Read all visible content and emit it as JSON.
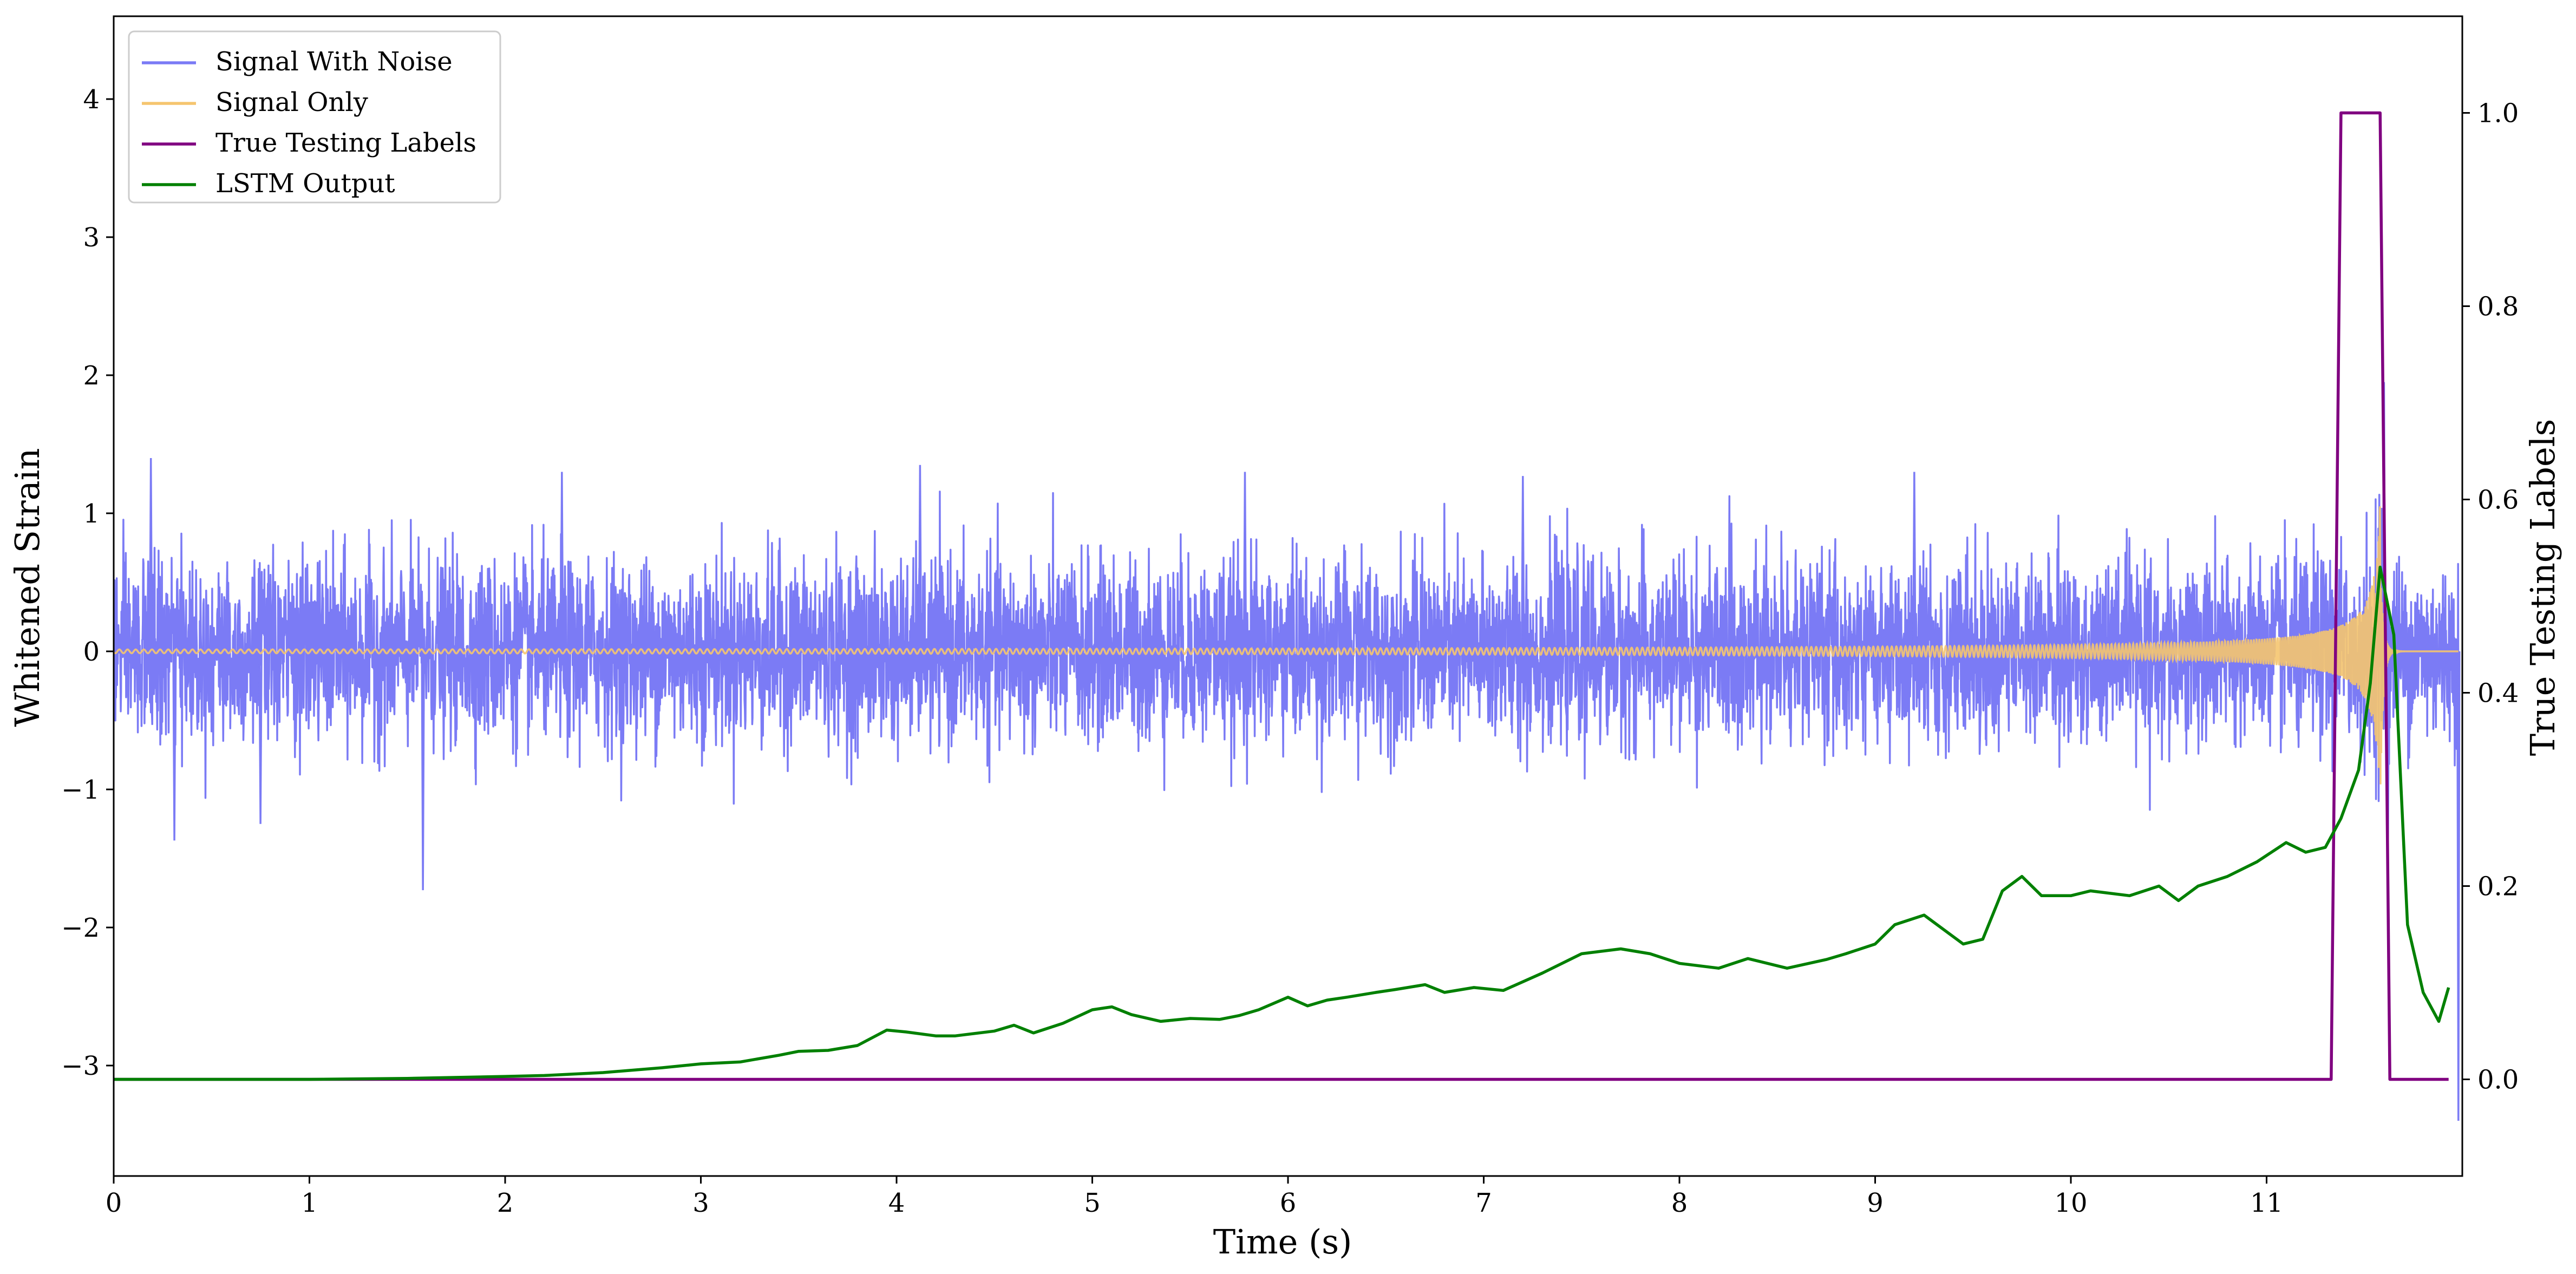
{
  "chart_data": {
    "type": "line",
    "xlabel": "Time (s)",
    "ylabel": "Whitened Strain",
    "y2label": "True Testing Labels",
    "xlim": [
      0,
      12
    ],
    "ylim": [
      -3.8,
      4.6
    ],
    "y2lim": [
      -0.1,
      1.1
    ],
    "x_ticks": [
      "0",
      "1",
      "2",
      "3",
      "4",
      "5",
      "6",
      "7",
      "8",
      "9",
      "10",
      "11"
    ],
    "x_tick_values": [
      0,
      1,
      2,
      3,
      4,
      5,
      6,
      7,
      8,
      9,
      10,
      11
    ],
    "y_ticks": [
      "−3",
      "−2",
      "−1",
      "0",
      "1",
      "2",
      "3",
      "4"
    ],
    "y_tick_values": [
      -3,
      -2,
      -1,
      0,
      1,
      2,
      3,
      4
    ],
    "y2_ticks": [
      "0.0",
      "0.2",
      "0.4",
      "0.6",
      "0.8",
      "1.0"
    ],
    "y2_tick_values": [
      0.0,
      0.2,
      0.4,
      0.6,
      0.8,
      1.0
    ],
    "grid": false,
    "legend_position": "top-left",
    "series": [
      {
        "name": "Signal With Noise",
        "axis": "left",
        "color": "#7b7bf5",
        "kind": "noise",
        "typical_amplitude": 0.45,
        "spikes": [
          {
            "x": 0.19,
            "y": 1.4
          },
          {
            "x": 0.31,
            "y": -1.37
          },
          {
            "x": 0.75,
            "y": -1.25
          },
          {
            "x": 1.58,
            "y": -1.73
          },
          {
            "x": 2.29,
            "y": 1.3
          },
          {
            "x": 4.12,
            "y": 1.35
          },
          {
            "x": 5.78,
            "y": 1.3
          },
          {
            "x": 7.2,
            "y": 1.27
          },
          {
            "x": 9.2,
            "y": 1.3
          },
          {
            "x": 11.6,
            "y": 1.95
          },
          {
            "x": 11.62,
            "y": -1.45
          },
          {
            "x": 11.98,
            "y": -3.4
          }
        ],
        "description_of_range": "noise approximately within [-1.2, 1.2]"
      },
      {
        "name": "Signal Only",
        "axis": "left",
        "color": "#f5c56f",
        "kind": "chirp",
        "merger_time": 11.58,
        "peak_amplitude": 1.1
      },
      {
        "name": "True Testing Labels",
        "axis": "right",
        "color": "#800080",
        "x": [
          0,
          11.33,
          11.38,
          11.58,
          11.63,
          11.93
        ],
        "y": [
          0,
          0,
          1,
          1,
          0,
          0
        ]
      },
      {
        "name": "LSTM Output",
        "axis": "right",
        "color": "#008000",
        "x": [
          0,
          1.0,
          1.5,
          2.0,
          2.2,
          2.5,
          2.8,
          3.0,
          3.2,
          3.4,
          3.5,
          3.65,
          3.8,
          3.95,
          4.05,
          4.2,
          4.3,
          4.5,
          4.6,
          4.7,
          4.85,
          5.0,
          5.1,
          5.2,
          5.35,
          5.5,
          5.65,
          5.75,
          5.85,
          6.0,
          6.1,
          6.2,
          6.3,
          6.45,
          6.55,
          6.7,
          6.8,
          6.95,
          7.1,
          7.3,
          7.5,
          7.7,
          7.85,
          8.0,
          8.2,
          8.35,
          8.55,
          8.75,
          8.85,
          9.0,
          9.1,
          9.25,
          9.45,
          9.55,
          9.65,
          9.75,
          9.85,
          10.0,
          10.1,
          10.3,
          10.45,
          10.55,
          10.65,
          10.8,
          10.95,
          11.1,
          11.2,
          11.3,
          11.38,
          11.47,
          11.53,
          11.58,
          11.65,
          11.72,
          11.8,
          11.88,
          11.93
        ],
        "y": [
          0.0,
          0.0,
          0.001,
          0.003,
          0.004,
          0.007,
          0.012,
          0.016,
          0.018,
          0.025,
          0.029,
          0.03,
          0.035,
          0.051,
          0.049,
          0.045,
          0.045,
          0.05,
          0.056,
          0.048,
          0.058,
          0.072,
          0.075,
          0.067,
          0.06,
          0.063,
          0.062,
          0.066,
          0.072,
          0.085,
          0.076,
          0.082,
          0.085,
          0.09,
          0.093,
          0.098,
          0.09,
          0.095,
          0.092,
          0.11,
          0.13,
          0.135,
          0.13,
          0.12,
          0.115,
          0.125,
          0.115,
          0.124,
          0.13,
          0.14,
          0.16,
          0.17,
          0.14,
          0.145,
          0.195,
          0.21,
          0.19,
          0.19,
          0.195,
          0.19,
          0.2,
          0.185,
          0.2,
          0.21,
          0.225,
          0.245,
          0.235,
          0.24,
          0.27,
          0.32,
          0.41,
          0.53,
          0.46,
          0.16,
          0.09,
          0.06,
          0.095
        ]
      }
    ]
  }
}
